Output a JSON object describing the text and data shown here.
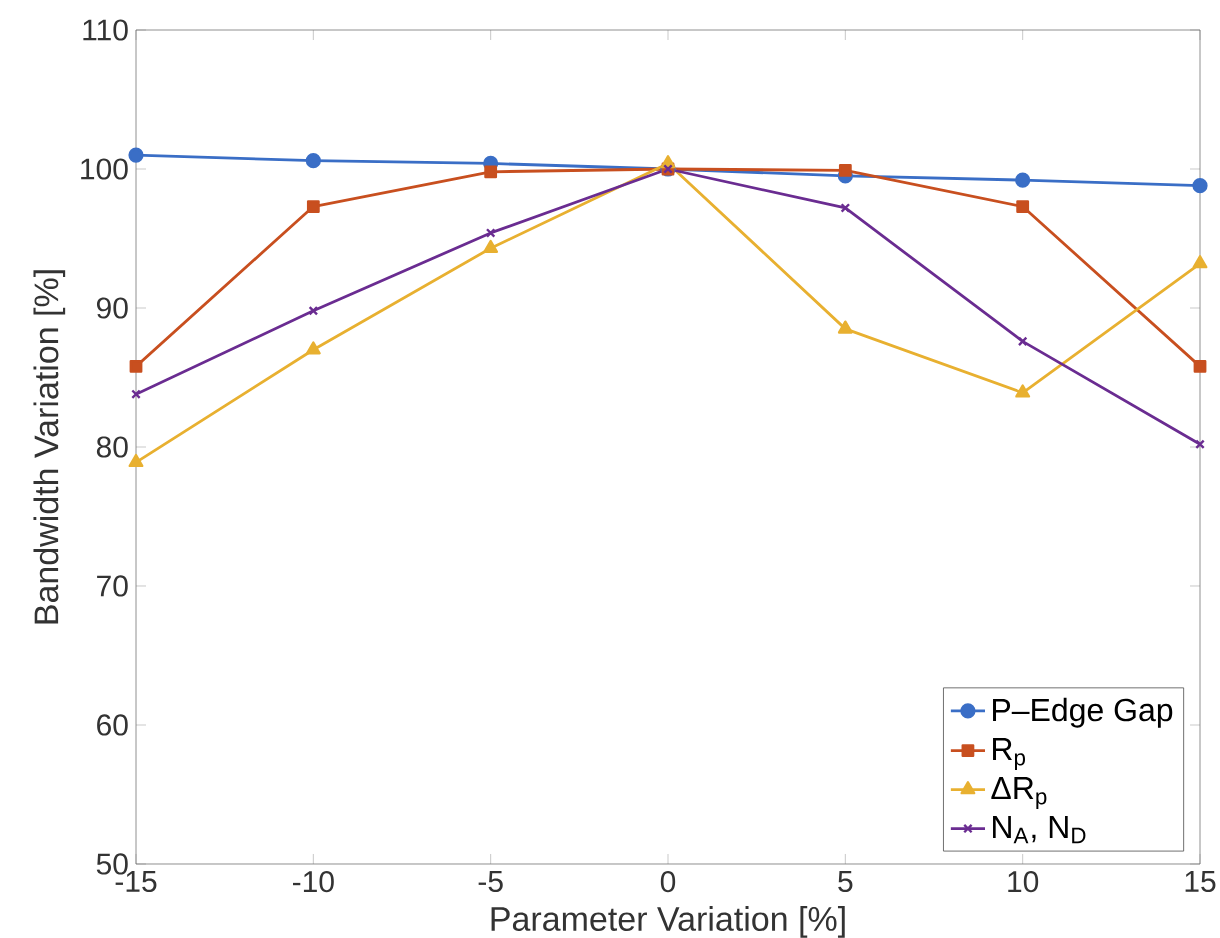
{
  "chart_data": {
    "type": "line",
    "xlabel": "Parameter Variation [%]",
    "ylabel": "Bandwidth Variation [%]",
    "x": [
      -15,
      -10,
      -5,
      0,
      5,
      10,
      15
    ],
    "series": [
      {
        "name": "P–Edge Gap",
        "color": "#3a6ec6",
        "marker": "circle",
        "values": [
          101.0,
          100.6,
          100.4,
          100.0,
          99.5,
          99.2,
          98.8
        ]
      },
      {
        "name": "R$_{p}$",
        "color": "#c84f1f",
        "marker": "square",
        "values": [
          85.8,
          97.3,
          99.8,
          100.0,
          99.9,
          97.3,
          85.8
        ]
      },
      {
        "name": "ΔR$_{p}$",
        "color": "#e8b030",
        "marker": "triangle",
        "values": [
          78.9,
          87.0,
          94.3,
          100.4,
          88.5,
          83.9,
          93.2
        ]
      },
      {
        "name": "N$_{A}$, N$_{D}$",
        "color": "#6a2c91",
        "marker": "cross",
        "values": [
          83.8,
          89.8,
          95.4,
          100.0,
          97.2,
          87.6,
          80.2
        ]
      }
    ],
    "xlim": [
      -15,
      15
    ],
    "ylim": [
      50,
      110
    ],
    "xticks": [
      -15,
      -10,
      -5,
      0,
      5,
      10,
      15
    ],
    "yticks": [
      50,
      60,
      70,
      80,
      90,
      100,
      110
    ],
    "grid": false,
    "legend": "bottom right",
    "line_style": "solid"
  }
}
